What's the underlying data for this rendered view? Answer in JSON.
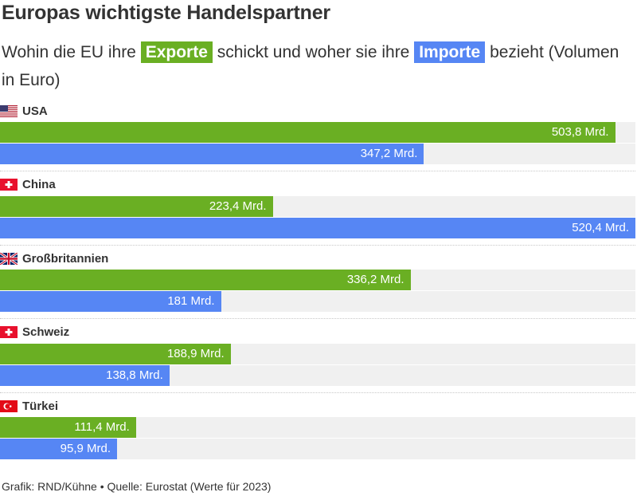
{
  "title": "Europas wichtigste Handelspartner",
  "subtitle": {
    "part1": "Wohin die EU ihre",
    "exports_chip": "Exporte",
    "part2": "schickt und woher sie ihre",
    "imports_chip": "Importe",
    "part3": "bezieht (Volumen in Euro)"
  },
  "colors": {
    "exports": "#6aaf23",
    "imports": "#5686f4",
    "track": "#f0f0f0"
  },
  "footer": "Grafik: RND/Kühne • Quelle: Eurostat (Werte für 2023)",
  "chart_data": {
    "type": "bar",
    "orientation": "horizontal",
    "unit": "Mrd.",
    "xlim": [
      0,
      520.4
    ],
    "categories": [
      "USA",
      "China",
      "Großbritannien",
      "Schweiz",
      "Türkei"
    ],
    "flags": [
      "us-flag-icon",
      "swiss-flag-icon",
      "uk-flag-icon",
      "swiss-flag-icon",
      "turkey-flag-icon"
    ],
    "series": [
      {
        "name": "Exporte",
        "values": [
          503.8,
          223.4,
          336.2,
          188.9,
          111.4
        ],
        "labels": [
          "503,8 Mrd.",
          "223,4 Mrd.",
          "336,2 Mrd.",
          "188,9 Mrd.",
          "111,4 Mrd."
        ]
      },
      {
        "name": "Importe",
        "values": [
          347.2,
          520.4,
          181,
          138.8,
          95.9
        ],
        "labels": [
          "347,2 Mrd.",
          "520,4 Mrd.",
          "181 Mrd.",
          "138,8 Mrd.",
          "95,9 Mrd."
        ]
      }
    ]
  }
}
